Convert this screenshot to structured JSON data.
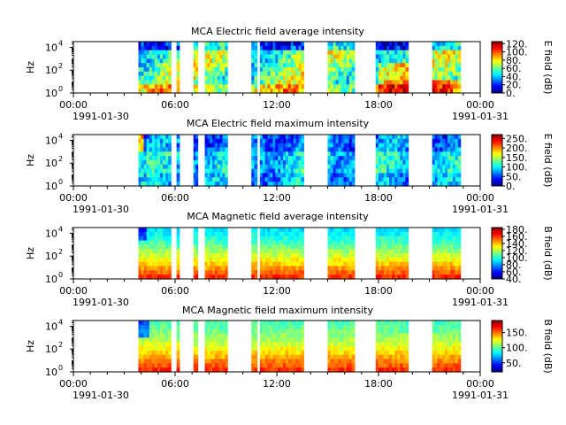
{
  "figure": {
    "background": "#ffffff"
  },
  "chart_data": [
    {
      "type": "heatmap",
      "title": "MCA  Electric field average intensity",
      "ylabel": "Hz",
      "colorbar_label": "E field (dB)",
      "colorbar_ticks": [
        "0.",
        "20.",
        "40.",
        "60.",
        "80.",
        "100.",
        "120."
      ],
      "colorbar_range": [
        0,
        125
      ],
      "y_scale": "log",
      "y_ticks": [
        {
          "base": "10",
          "exp": "0"
        },
        {
          "base": "10",
          "exp": "2"
        },
        {
          "base": "10",
          "exp": "4"
        }
      ],
      "x_ticks": [
        "00:00",
        "06:00",
        "12:00",
        "18:00",
        "00:00"
      ],
      "x_dates": [
        "1991-01-30",
        "1991-01-31"
      ],
      "palette": "e_avg"
    },
    {
      "type": "heatmap",
      "title": "MCA  Electric field maximum intensity",
      "ylabel": "Hz",
      "colorbar_label": "E field (dB)",
      "colorbar_ticks": [
        "0.",
        "50.",
        "100.",
        "150.",
        "200.",
        "250."
      ],
      "colorbar_range": [
        0,
        270
      ],
      "y_scale": "log",
      "y_ticks": [
        {
          "base": "10",
          "exp": "0"
        },
        {
          "base": "10",
          "exp": "2"
        },
        {
          "base": "10",
          "exp": "4"
        }
      ],
      "x_ticks": [
        "00:00",
        "06:00",
        "12:00",
        "18:00",
        "00:00"
      ],
      "x_dates": [
        "1991-01-30",
        "1991-01-31"
      ],
      "palette": "e_max"
    },
    {
      "type": "heatmap",
      "title": "MCA  Magnetic field average intensity",
      "ylabel": "Hz",
      "colorbar_label": "B field (dB)",
      "colorbar_ticks": [
        "40.",
        "60.",
        "80.",
        "100.",
        "120.",
        "140.",
        "160.",
        "180."
      ],
      "colorbar_range": [
        40,
        185
      ],
      "y_scale": "log",
      "y_ticks": [
        {
          "base": "10",
          "exp": "0"
        },
        {
          "base": "10",
          "exp": "2"
        },
        {
          "base": "10",
          "exp": "4"
        }
      ],
      "x_ticks": [
        "00:00",
        "06:00",
        "12:00",
        "18:00",
        "00:00"
      ],
      "x_dates": [
        "1991-01-30",
        "1991-01-31"
      ],
      "palette": "b_avg"
    },
    {
      "type": "heatmap",
      "title": "MCA  Magnetic field maximum intensity",
      "ylabel": "Hz",
      "colorbar_label": "B field (dB)",
      "colorbar_ticks": [
        "50.",
        "100.",
        "150."
      ],
      "colorbar_range": [
        20,
        190
      ],
      "y_scale": "log",
      "y_ticks": [
        {
          "base": "10",
          "exp": "0"
        },
        {
          "base": "10",
          "exp": "2"
        },
        {
          "base": "10",
          "exp": "4"
        }
      ],
      "x_ticks": [
        "00:00",
        "06:00",
        "12:00",
        "18:00",
        "00:00"
      ],
      "x_dates": [
        "1991-01-30",
        "1991-01-31"
      ],
      "palette": "b_max"
    }
  ],
  "data_segments": [
    [
      "03:50",
      "05:45"
    ],
    [
      "06:05",
      "06:15"
    ],
    [
      "07:05",
      "07:20"
    ],
    [
      "07:45",
      "09:05"
    ],
    [
      "10:30",
      "10:50"
    ],
    [
      "11:00",
      "13:35"
    ],
    [
      "15:00",
      "16:35"
    ],
    [
      "17:50",
      "19:45"
    ],
    [
      "21:10",
      "22:50"
    ]
  ]
}
